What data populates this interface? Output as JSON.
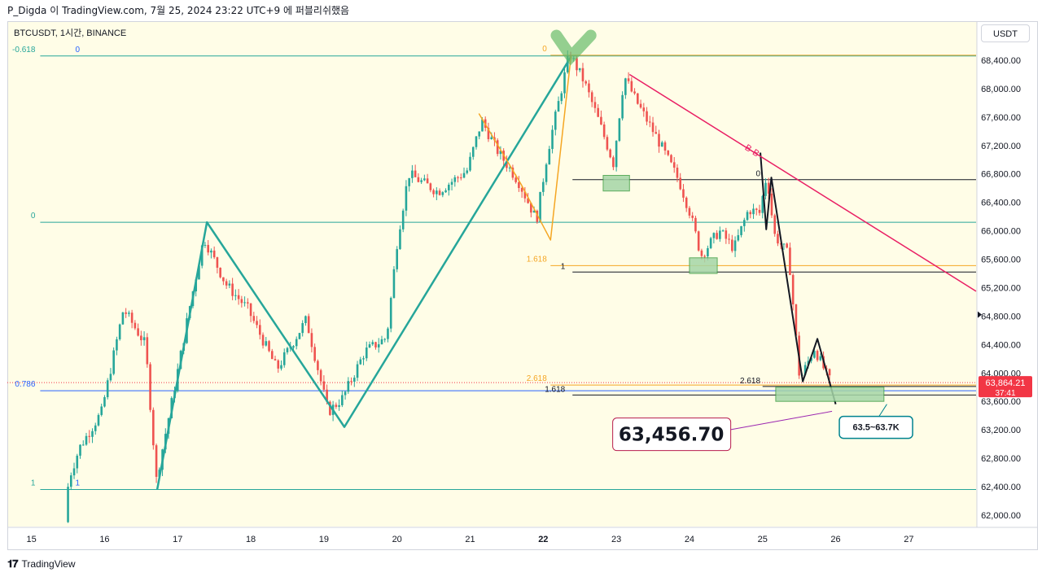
{
  "header": {
    "text": "P_Digda 이 TradingView.com, 7월 25, 2024 23:22 UTC+9 에 퍼블리쉬했음"
  },
  "footer": {
    "logo": "𝟏𝟕",
    "brand": "TradingView"
  },
  "unit_badge": "USDT",
  "colors": {
    "background": "#fffde7",
    "bull": "#26a69a",
    "bear": "#ef5350",
    "teal_line": "#26a69a",
    "orange_line": "#f5a623",
    "pink_line": "#e91e63",
    "black_line": "#131722",
    "price_tag": "#f23645",
    "zone_fill": "#a5d6a7"
  },
  "chart_data": {
    "type": "candlestick",
    "symbol_label": "BTCUSDT, 1시간, BINANCE",
    "y_ticks": [
      "68,400.00",
      "68,000.00",
      "67,600.00",
      "67,200.00",
      "66,800.00",
      "66,400.00",
      "66,000.00",
      "65,600.00",
      "65,200.00",
      "64,800.00",
      "64,400.00",
      "64,000.00",
      "63,600.00",
      "63,200.00",
      "62,800.00",
      "62,400.00",
      "62,000.00"
    ],
    "y_tick_values": [
      68400,
      68000,
      67600,
      67200,
      66800,
      66400,
      66000,
      65600,
      65200,
      64800,
      64400,
      64000,
      63600,
      63200,
      62800,
      62400,
      62000
    ],
    "ylim": [
      61850,
      68950
    ],
    "x_ticks": [
      "15",
      "16",
      "17",
      "18",
      "19",
      "20",
      "21",
      "22",
      "23",
      "24",
      "25",
      "26",
      "27"
    ],
    "x_tick_days": [
      15,
      16,
      17,
      18,
      19,
      20,
      21,
      22,
      23,
      24,
      25,
      26,
      27
    ],
    "xlim_days": [
      14.67,
      27.92
    ],
    "last_price": {
      "value": 63864.21,
      "label": "63,864.21",
      "countdown": "37:41"
    },
    "price_path_days": [
      15.5,
      15.55,
      15.7,
      16.0,
      16.3,
      16.6,
      16.75,
      17.0,
      17.2,
      17.4,
      17.7,
      18.0,
      18.4,
      18.8,
      19.1,
      19.3,
      19.6,
      19.9,
      20.05,
      20.2,
      20.6,
      21.0,
      21.2,
      21.4,
      21.7,
      21.95,
      22.1,
      22.25,
      22.4,
      22.6,
      22.8,
      23.0,
      23.15,
      23.3,
      23.6,
      23.9,
      24.05,
      24.2,
      24.45,
      24.65,
      24.85,
      25.0,
      25.1,
      25.2,
      25.4,
      25.55,
      25.75,
      25.95
    ],
    "price_path_values": [
      61900,
      62500,
      62950,
      63450,
      64900,
      64400,
      62500,
      63800,
      64900,
      65900,
      65250,
      64900,
      64050,
      64750,
      63450,
      63650,
      64300,
      64500,
      65900,
      66800,
      66550,
      66850,
      67550,
      67150,
      66700,
      66150,
      67100,
      67800,
      68500,
      68100,
      67550,
      66950,
      68180,
      67850,
      67300,
      66700,
      66250,
      65650,
      66000,
      65750,
      66300,
      66250,
      66800,
      65950,
      65650,
      63900,
      64350,
      63900
    ],
    "annotations": {
      "fib_teal": [
        {
          "left": "-0.618",
          "right": "0",
          "value": 68460
        },
        {
          "left": "0",
          "value": 66120
        },
        {
          "left": "0.786",
          "value": 63750
        },
        {
          "left": "1",
          "right": "1",
          "value": 62360
        }
      ],
      "fib_orange": [
        {
          "label": "0",
          "value": 68470
        },
        {
          "label": "1.618",
          "value": 65510
        },
        {
          "label": "2.618",
          "value": 63830
        }
      ],
      "fib_black": [
        {
          "label": "0",
          "value": 66720
        },
        {
          "label": "1",
          "value": 65420
        },
        {
          "label": "1.618",
          "value": 63690
        },
        {
          "label": "2.618",
          "value": 63810
        }
      ],
      "bb_label": "B-B",
      "target_price_label": "63,456.70",
      "target_zone_label": "63.5~63.7K"
    }
  }
}
